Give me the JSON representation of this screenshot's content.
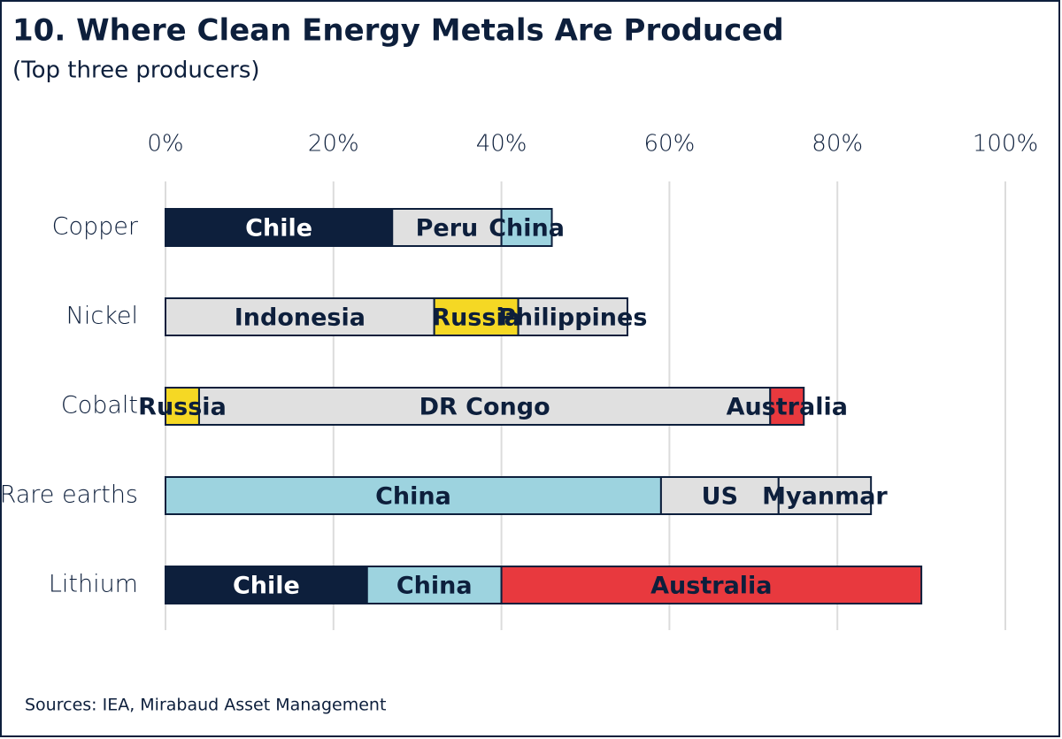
{
  "chart_data": {
    "type": "bar",
    "orientation": "horizontal",
    "title": "10. Where Clean Energy Metals Are Produced",
    "subtitle": "(Top three producers)",
    "source": "Sources: IEA, Mirabaud Asset Management",
    "categories": [
      "Copper",
      "Nickel",
      "Cobalt",
      "Rare earths",
      "Lithium"
    ],
    "series": [
      {
        "values": [
          27,
          32,
          4,
          59,
          24
        ],
        "labels": [
          "Chile",
          "Indonesia",
          "Russia",
          "China",
          "Chile"
        ],
        "colors": [
          "#0d1f3c",
          "#e0e0e0",
          "#f5d824",
          "#9dd3df",
          "#0d1f3c"
        ]
      },
      {
        "values": [
          13,
          10,
          68,
          14,
          16
        ],
        "labels": [
          "Peru",
          "Russia",
          "DR Congo",
          "US",
          "China"
        ],
        "colors": [
          "#e0e0e0",
          "#f5d824",
          "#e0e0e0",
          "#e0e0e0",
          "#9dd3df"
        ]
      },
      {
        "values": [
          6,
          13,
          4,
          11,
          50
        ],
        "labels": [
          "China",
          "Philippines",
          "Australia",
          "Myanmar",
          "Australia"
        ],
        "colors": [
          "#9dd3df",
          "#e0e0e0",
          "#e8393e",
          "#e0e0e0",
          "#e8393e"
        ]
      }
    ],
    "xlim": [
      0,
      100
    ],
    "xticks": [
      {
        "value": 0,
        "label": "0%"
      },
      {
        "value": 20,
        "label": "20%"
      },
      {
        "value": 40,
        "label": "40%"
      },
      {
        "value": 60,
        "label": "60%"
      },
      {
        "value": 80,
        "label": "80%"
      },
      {
        "value": 100,
        "label": "100%"
      }
    ],
    "grid": true
  }
}
